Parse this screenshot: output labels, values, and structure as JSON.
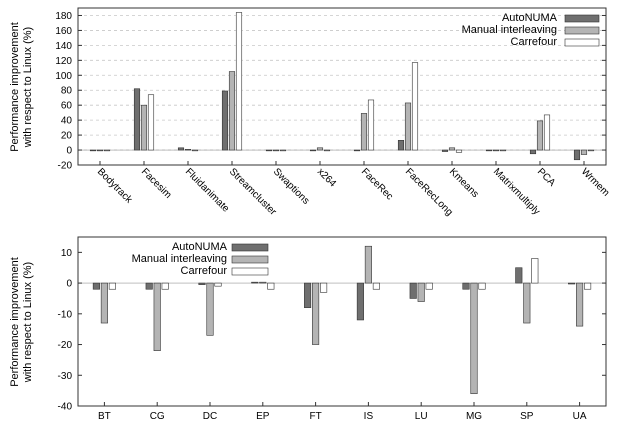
{
  "colors": {
    "AutoNUMA": "#6f6f6f",
    "Manual interleaving": "#b4b4b4",
    "Carrefour": "#ffffff",
    "stroke": "#333333",
    "grid": "#c8c8c8"
  },
  "chart_data": [
    {
      "type": "bar",
      "title": "",
      "ylabel": "Performance improvement\nwith respect to Linux (%)",
      "xlabel": "",
      "ylim": [
        -20,
        190
      ],
      "yticks": [
        -20,
        0,
        20,
        40,
        60,
        80,
        100,
        120,
        140,
        160,
        180
      ],
      "grid": "horizontal dashed",
      "legend": "top-right",
      "categories": [
        "Bodytrack",
        "Facesim",
        "Fluidanimate",
        "Streamcluster",
        "Swaptions",
        "x264",
        "FaceRec",
        "FaceRecLong",
        "Kmeans",
        "Matrixmultiply",
        "PCA",
        "Wrmem"
      ],
      "series": [
        {
          "name": "AutoNUMA",
          "values": [
            -0.5,
            82,
            3,
            79,
            -0.5,
            -1,
            0,
            13,
            -2,
            -0.5,
            -5,
            -13
          ]
        },
        {
          "name": "Manual interleaving",
          "values": [
            -0.5,
            60,
            1,
            105,
            -0.5,
            3,
            49,
            63,
            3,
            -0.5,
            39,
            -6
          ]
        },
        {
          "name": "Carrefour",
          "values": [
            -0.5,
            74,
            0,
            184,
            -0.5,
            -1,
            67,
            117,
            -3,
            -0.5,
            47,
            0
          ]
        }
      ]
    },
    {
      "type": "bar",
      "title": "",
      "ylabel": "Performance improvement\nwith respect to Linux (%)",
      "xlabel": "",
      "ylim": [
        -40,
        15
      ],
      "yticks": [
        -40,
        -30,
        -20,
        -10,
        0,
        10
      ],
      "grid": "none",
      "legend": "top-left",
      "categories": [
        "BT",
        "CG",
        "DC",
        "EP",
        "FT",
        "IS",
        "LU",
        "MG",
        "SP",
        "UA"
      ],
      "series": [
        {
          "name": "AutoNUMA",
          "values": [
            -2,
            -2,
            -0.5,
            0.3,
            -8,
            -12,
            -5,
            -2,
            5,
            -0.3
          ]
        },
        {
          "name": "Manual interleaving",
          "values": [
            -13,
            -22,
            -17,
            0.3,
            -20,
            12,
            -6,
            -36,
            -13,
            -14
          ]
        },
        {
          "name": "Carrefour",
          "values": [
            -2,
            -2,
            -1,
            -2,
            -3,
            -2,
            -2,
            -2,
            8,
            -2
          ]
        }
      ]
    }
  ]
}
